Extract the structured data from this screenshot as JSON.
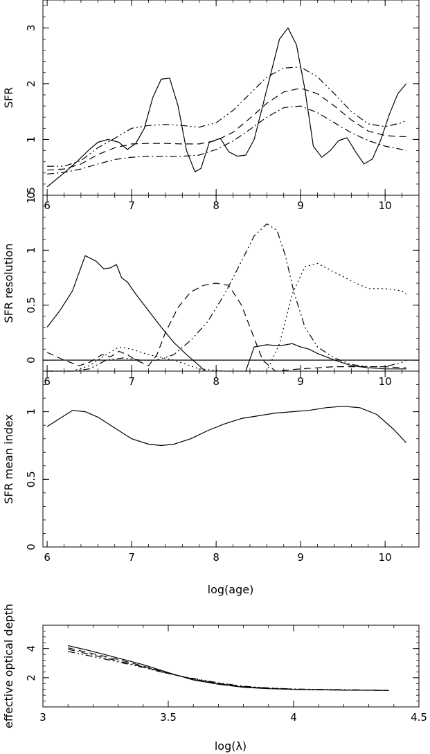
{
  "chart_data": [
    {
      "type": "line",
      "id": "sfr",
      "xlabel": "",
      "ylabel": "SFR",
      "xlim": [
        5.95,
        10.4
      ],
      "ylim": [
        0,
        3.5
      ],
      "xticks": [
        6,
        7,
        8,
        9,
        10
      ],
      "yticks": [
        0,
        1,
        2,
        3
      ],
      "xtick_labels": [
        "6",
        "7",
        "8",
        "9",
        "10"
      ],
      "ytick_labels": [
        "0",
        "1",
        "2",
        "3"
      ],
      "series": [
        {
          "style": "solid",
          "x": [
            6.0,
            6.2,
            6.35,
            6.5,
            6.6,
            6.72,
            6.85,
            6.95,
            7.05,
            7.15,
            7.25,
            7.35,
            7.45,
            7.55,
            7.65,
            7.75,
            7.82,
            7.92,
            8.05,
            8.15,
            8.25,
            8.35,
            8.45,
            8.55,
            8.65,
            8.75,
            8.85,
            8.95,
            9.05,
            9.15,
            9.25,
            9.35,
            9.45,
            9.55,
            9.65,
            9.75,
            9.85,
            9.95,
            10.05,
            10.15,
            10.25
          ],
          "y": [
            0.15,
            0.4,
            0.6,
            0.82,
            0.95,
            1.0,
            0.95,
            0.82,
            0.93,
            1.2,
            1.75,
            2.08,
            2.1,
            1.6,
            0.8,
            0.42,
            0.48,
            0.95,
            1.02,
            0.78,
            0.7,
            0.72,
            1.0,
            1.6,
            2.2,
            2.8,
            3.0,
            2.7,
            1.9,
            0.88,
            0.68,
            0.8,
            0.98,
            1.03,
            0.78,
            0.56,
            0.65,
            1.0,
            1.45,
            1.82,
            2.0
          ]
        },
        {
          "style": "dash-dot-dot",
          "x": [
            6.0,
            6.2,
            6.4,
            6.6,
            6.8,
            7.0,
            7.2,
            7.4,
            7.6,
            7.8,
            8.0,
            8.2,
            8.4,
            8.6,
            8.8,
            9.0,
            9.2,
            9.4,
            9.6,
            9.8,
            10.0,
            10.2,
            10.25
          ],
          "y": [
            0.52,
            0.52,
            0.62,
            0.85,
            1.02,
            1.2,
            1.25,
            1.27,
            1.25,
            1.22,
            1.3,
            1.52,
            1.82,
            2.12,
            2.28,
            2.3,
            2.12,
            1.82,
            1.5,
            1.28,
            1.23,
            1.3,
            1.35
          ]
        },
        {
          "style": "dashed",
          "x": [
            6.0,
            6.2,
            6.4,
            6.6,
            6.8,
            7.0,
            7.2,
            7.4,
            7.6,
            7.8,
            8.0,
            8.2,
            8.4,
            8.6,
            8.8,
            9.0,
            9.2,
            9.4,
            9.6,
            9.8,
            10.0,
            10.2,
            10.25
          ],
          "y": [
            0.45,
            0.47,
            0.56,
            0.73,
            0.85,
            0.92,
            0.93,
            0.93,
            0.92,
            0.92,
            0.98,
            1.13,
            1.38,
            1.65,
            1.85,
            1.92,
            1.82,
            1.6,
            1.35,
            1.15,
            1.07,
            1.05,
            1.05
          ]
        },
        {
          "style": "dash-dot",
          "x": [
            6.0,
            6.2,
            6.4,
            6.6,
            6.8,
            7.0,
            7.2,
            7.4,
            7.6,
            7.8,
            8.0,
            8.2,
            8.4,
            8.6,
            8.8,
            9.0,
            9.2,
            9.4,
            9.6,
            9.8,
            10.0,
            10.2,
            10.25
          ],
          "y": [
            0.38,
            0.41,
            0.47,
            0.56,
            0.64,
            0.68,
            0.7,
            0.7,
            0.7,
            0.72,
            0.82,
            0.97,
            1.18,
            1.4,
            1.57,
            1.6,
            1.48,
            1.3,
            1.12,
            0.98,
            0.88,
            0.82,
            0.8
          ]
        }
      ]
    },
    {
      "type": "line",
      "id": "resolution",
      "xlabel": "",
      "ylabel": "SFR resolution",
      "xlim": [
        5.95,
        10.4
      ],
      "ylim": [
        -0.1,
        1.5
      ],
      "xticks": [
        6,
        7,
        8,
        9,
        10
      ],
      "yticks": [
        0,
        0.5,
        1,
        1.5
      ],
      "xtick_labels": [
        "6",
        "7",
        "8",
        "9",
        "10"
      ],
      "ytick_labels": [
        "0",
        "0.5",
        "1",
        "1.5"
      ],
      "series": [
        {
          "style": "solid",
          "x": [
            6.0,
            6.15,
            6.3,
            6.45,
            6.58,
            6.67,
            6.75,
            6.82,
            6.88,
            6.95,
            7.05,
            7.2,
            7.35,
            7.5,
            7.65,
            7.8,
            7.87
          ],
          "y": [
            0.3,
            0.45,
            0.63,
            0.95,
            0.9,
            0.83,
            0.84,
            0.87,
            0.75,
            0.71,
            0.6,
            0.45,
            0.3,
            0.16,
            0.05,
            -0.05,
            -0.1
          ]
        },
        {
          "style": "solid",
          "x": [
            8.35,
            8.45,
            8.6,
            8.75,
            8.9,
            9.0,
            9.1,
            9.2,
            9.4,
            9.6,
            9.8,
            10.0,
            10.2,
            10.25
          ],
          "y": [
            -0.1,
            0.12,
            0.14,
            0.13,
            0.15,
            0.12,
            0.1,
            0.06,
            0.0,
            -0.05,
            -0.07,
            -0.08,
            -0.08,
            -0.08
          ]
        },
        {
          "style": "dashed",
          "x": [
            6.0,
            6.2,
            6.38,
            6.5,
            6.65,
            6.75,
            6.85,
            6.95,
            7.05,
            7.2,
            7.3,
            7.4,
            7.55,
            7.7,
            7.85,
            8.0,
            8.15,
            8.3,
            8.4,
            8.55,
            8.7,
            9.0,
            9.2,
            9.4,
            9.6,
            9.8,
            10.0,
            10.2,
            10.25
          ],
          "y": [
            0.07,
            0.0,
            -0.05,
            -0.02,
            0.05,
            0.03,
            0.08,
            0.05,
            0.0,
            -0.05,
            0.05,
            0.25,
            0.48,
            0.62,
            0.68,
            0.7,
            0.68,
            0.5,
            0.3,
            0.0,
            -0.1,
            -0.08,
            -0.07,
            -0.06,
            -0.06,
            -0.06,
            -0.06,
            -0.07,
            -0.07
          ]
        },
        {
          "style": "dash-dot-dot",
          "x": [
            6.0,
            6.3,
            6.5,
            6.7,
            6.9,
            7.1,
            7.3,
            7.5,
            7.7,
            7.9,
            8.1,
            8.3,
            8.45,
            8.6,
            8.72,
            8.82,
            8.92,
            9.05,
            9.2,
            9.4,
            9.6,
            9.8,
            10.0,
            10.2,
            10.25
          ],
          "y": [
            -0.1,
            -0.1,
            -0.08,
            0.0,
            0.02,
            0.0,
            0.0,
            0.05,
            0.18,
            0.35,
            0.6,
            0.9,
            1.13,
            1.24,
            1.18,
            0.95,
            0.62,
            0.3,
            0.12,
            0.02,
            -0.04,
            -0.06,
            -0.06,
            -0.02,
            0.0
          ]
        },
        {
          "style": "dotted",
          "x": [
            6.0,
            6.3,
            6.5,
            6.7,
            6.85,
            7.0,
            7.2,
            7.5,
            7.8,
            8.1,
            8.4,
            8.6,
            8.75,
            8.9,
            9.05,
            9.2,
            9.4,
            9.6,
            9.8,
            10.0,
            10.2,
            10.25
          ],
          "y": [
            -0.1,
            -0.1,
            -0.05,
            0.05,
            0.12,
            0.1,
            0.05,
            0.0,
            -0.08,
            -0.1,
            -0.1,
            -0.1,
            0.15,
            0.6,
            0.85,
            0.88,
            0.8,
            0.72,
            0.65,
            0.65,
            0.63,
            0.6
          ]
        }
      ]
    },
    {
      "type": "line",
      "id": "mean-index",
      "xlabel": "log(age)",
      "ylabel": "SFR mean index",
      "xlim": [
        5.95,
        10.4
      ],
      "ylim": [
        0,
        1.3
      ],
      "xticks": [
        6,
        7,
        8,
        9,
        10
      ],
      "yticks": [
        0,
        0.5,
        1
      ],
      "xtick_labels": [
        "6",
        "7",
        "8",
        "9",
        "10"
      ],
      "ytick_labels": [
        "0",
        "0.5",
        "1"
      ],
      "series": [
        {
          "style": "solid",
          "x": [
            6.0,
            6.15,
            6.3,
            6.45,
            6.6,
            6.8,
            7.0,
            7.2,
            7.35,
            7.5,
            7.7,
            7.9,
            8.1,
            8.3,
            8.5,
            8.7,
            8.9,
            9.1,
            9.3,
            9.5,
            9.7,
            9.9,
            10.1,
            10.25
          ],
          "y": [
            0.89,
            0.95,
            1.01,
            1.0,
            0.96,
            0.88,
            0.8,
            0.76,
            0.75,
            0.76,
            0.8,
            0.86,
            0.91,
            0.95,
            0.97,
            0.99,
            1.0,
            1.01,
            1.03,
            1.04,
            1.03,
            0.98,
            0.87,
            0.77
          ]
        }
      ]
    },
    {
      "type": "line",
      "id": "optical-depth",
      "xlabel": "log(λ)",
      "ylabel": "effective optical depth",
      "xlim": [
        3,
        4.5
      ],
      "ylim": [
        0,
        5.6
      ],
      "xticks": [
        3,
        3.5,
        4,
        4.5
      ],
      "yticks": [
        2,
        4
      ],
      "xtick_labels": [
        "3",
        "3.5",
        "4",
        "4.5"
      ],
      "ytick_labels": [
        "2",
        "4"
      ],
      "series": [
        {
          "style": "solid",
          "x": [
            3.1,
            3.2,
            3.3,
            3.4,
            3.5,
            3.6,
            3.7,
            3.8,
            3.9,
            4.0,
            4.1,
            4.2,
            4.3,
            4.38
          ],
          "y": [
            4.2,
            3.8,
            3.35,
            2.9,
            2.35,
            1.85,
            1.55,
            1.35,
            1.25,
            1.2,
            1.18,
            1.15,
            1.15,
            1.12
          ]
        },
        {
          "style": "dashed",
          "x": [
            3.1,
            3.2,
            3.3,
            3.4,
            3.5,
            3.6,
            3.7,
            3.8,
            3.9,
            4.0,
            4.1,
            4.2,
            4.3,
            4.38
          ],
          "y": [
            4.05,
            3.65,
            3.25,
            2.8,
            2.3,
            1.9,
            1.6,
            1.38,
            1.27,
            1.2,
            1.17,
            1.15,
            1.14,
            1.12
          ]
        },
        {
          "style": "dash-dot",
          "x": [
            3.1,
            3.2,
            3.3,
            3.4,
            3.5,
            3.6,
            3.7,
            3.8,
            3.9,
            4.0,
            4.1,
            4.2,
            4.3,
            4.38
          ],
          "y": [
            3.95,
            3.55,
            3.15,
            2.75,
            2.3,
            1.92,
            1.62,
            1.4,
            1.28,
            1.22,
            1.18,
            1.16,
            1.15,
            1.13
          ]
        },
        {
          "style": "dash-dot-dot",
          "x": [
            3.1,
            3.2,
            3.3,
            3.4,
            3.5,
            3.6,
            3.7,
            3.8,
            3.9,
            4.0,
            4.1,
            4.2,
            4.3,
            4.38
          ],
          "y": [
            3.8,
            3.45,
            3.08,
            2.7,
            2.28,
            1.95,
            1.65,
            1.42,
            1.3,
            1.23,
            1.2,
            1.18,
            1.16,
            1.14
          ]
        }
      ]
    }
  ]
}
